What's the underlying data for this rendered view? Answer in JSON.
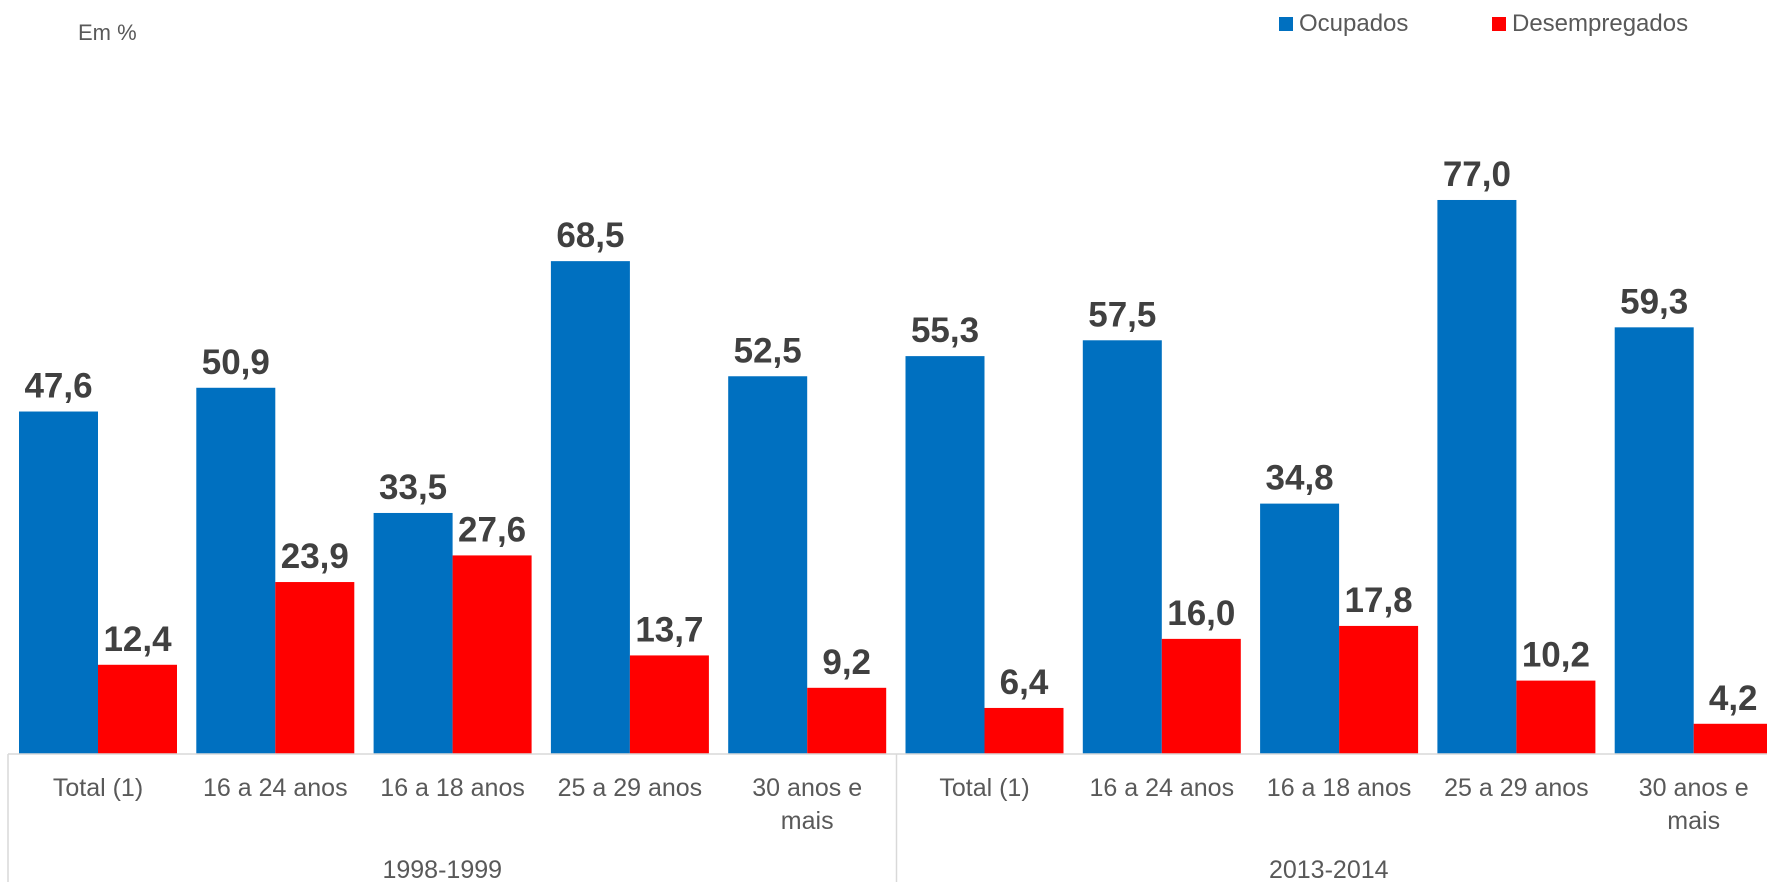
{
  "unit_label": "Em %",
  "colors": {
    "ocupados": "#0070C0",
    "desempregados": "#FF0000"
  },
  "chart_data": {
    "type": "bar",
    "title": "",
    "ylim": [
      0,
      85
    ],
    "grid": false,
    "legend_position": "top-right",
    "groups": [
      {
        "label": "1998-1999",
        "categories": [
          "Total (1)",
          "16 a 24 anos",
          "16 a 18 anos",
          "25 a 29 anos",
          "30 anos e mais"
        ]
      },
      {
        "label": "2013-2014",
        "categories": [
          "Total (1)",
          "16 a 24 anos",
          "16 a 18 anos",
          "25 a 29 anos",
          "30 anos e mais"
        ]
      }
    ],
    "series": [
      {
        "name": "Ocupados",
        "values": [
          47.6,
          50.9,
          33.5,
          68.5,
          52.5,
          55.3,
          57.5,
          34.8,
          77.0,
          59.3
        ],
        "labels": [
          "47,6",
          "50,9",
          "33,5",
          "68,5",
          "52,5",
          "55,3",
          "57,5",
          "34,8",
          "77,0",
          "59,3"
        ]
      },
      {
        "name": "Desempregados",
        "values": [
          12.4,
          23.9,
          27.6,
          13.7,
          9.2,
          6.4,
          16.0,
          17.8,
          10.2,
          4.2
        ],
        "labels": [
          "12,4",
          "23,9",
          "27,6",
          "13,7",
          "9,2",
          "6,4",
          "16,0",
          "17,8",
          "10,2",
          "4,2"
        ]
      }
    ]
  }
}
